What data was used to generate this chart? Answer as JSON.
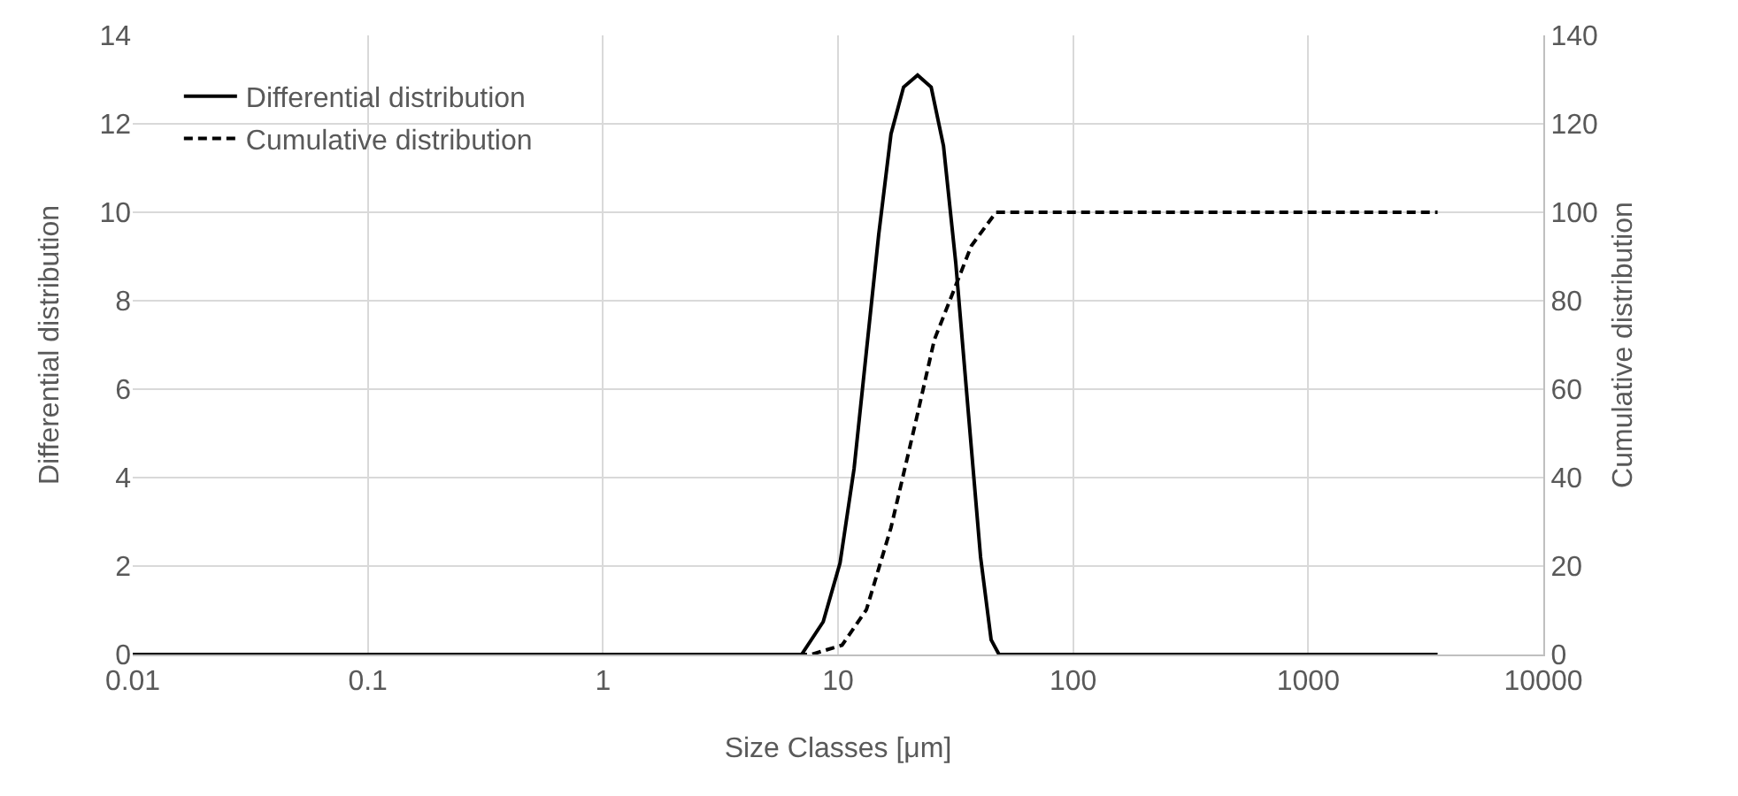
{
  "chart_data": {
    "type": "line",
    "xlabel": "Size Classes [μm]",
    "ylabel": "Differential distribution",
    "y2label": "Cumulative distribution",
    "log": "x",
    "xlim": [
      0.01,
      10000
    ],
    "xticks": [
      0.01,
      0.1,
      1,
      10,
      100,
      1000,
      10000
    ],
    "ylim": [
      0,
      14
    ],
    "yticks": [
      0,
      2,
      4,
      6,
      8,
      10,
      12,
      14
    ],
    "y2lim": [
      0,
      140
    ],
    "y2ticks": [
      0,
      20,
      40,
      60,
      80,
      100,
      120,
      140
    ],
    "grid": true,
    "legend": "top left",
    "marker": "none",
    "series": [
      {
        "name": "Differential distribution",
        "color": "#000000",
        "line_style": "solid",
        "x": [
          0.01,
          7.0,
          8.65,
          10.2,
          11.7,
          13.2,
          14.9,
          16.8,
          19.0,
          21.8,
          24.9,
          28.1,
          31.7,
          35.8,
          40.4,
          44.8,
          48.4,
          3550
        ],
        "values": [
          0,
          0,
          0.74,
          2.07,
          4.2,
          6.85,
          9.5,
          11.77,
          12.83,
          13.1,
          12.83,
          11.5,
          8.84,
          5.5,
          2.2,
          0.33,
          0,
          0
        ]
      },
      {
        "name": "Cumulative distribution",
        "color": "#000000",
        "line_style": "dashed",
        "axis": "y2",
        "x": [
          0.01,
          7.7,
          10.4,
          13.2,
          16.8,
          21.4,
          25.7,
          30.8,
          36.9,
          47.0,
          3550
        ],
        "values": [
          0,
          0,
          2.1,
          10.1,
          28.7,
          52.6,
          71.2,
          81.8,
          92.4,
          100,
          100
        ]
      }
    ]
  }
}
